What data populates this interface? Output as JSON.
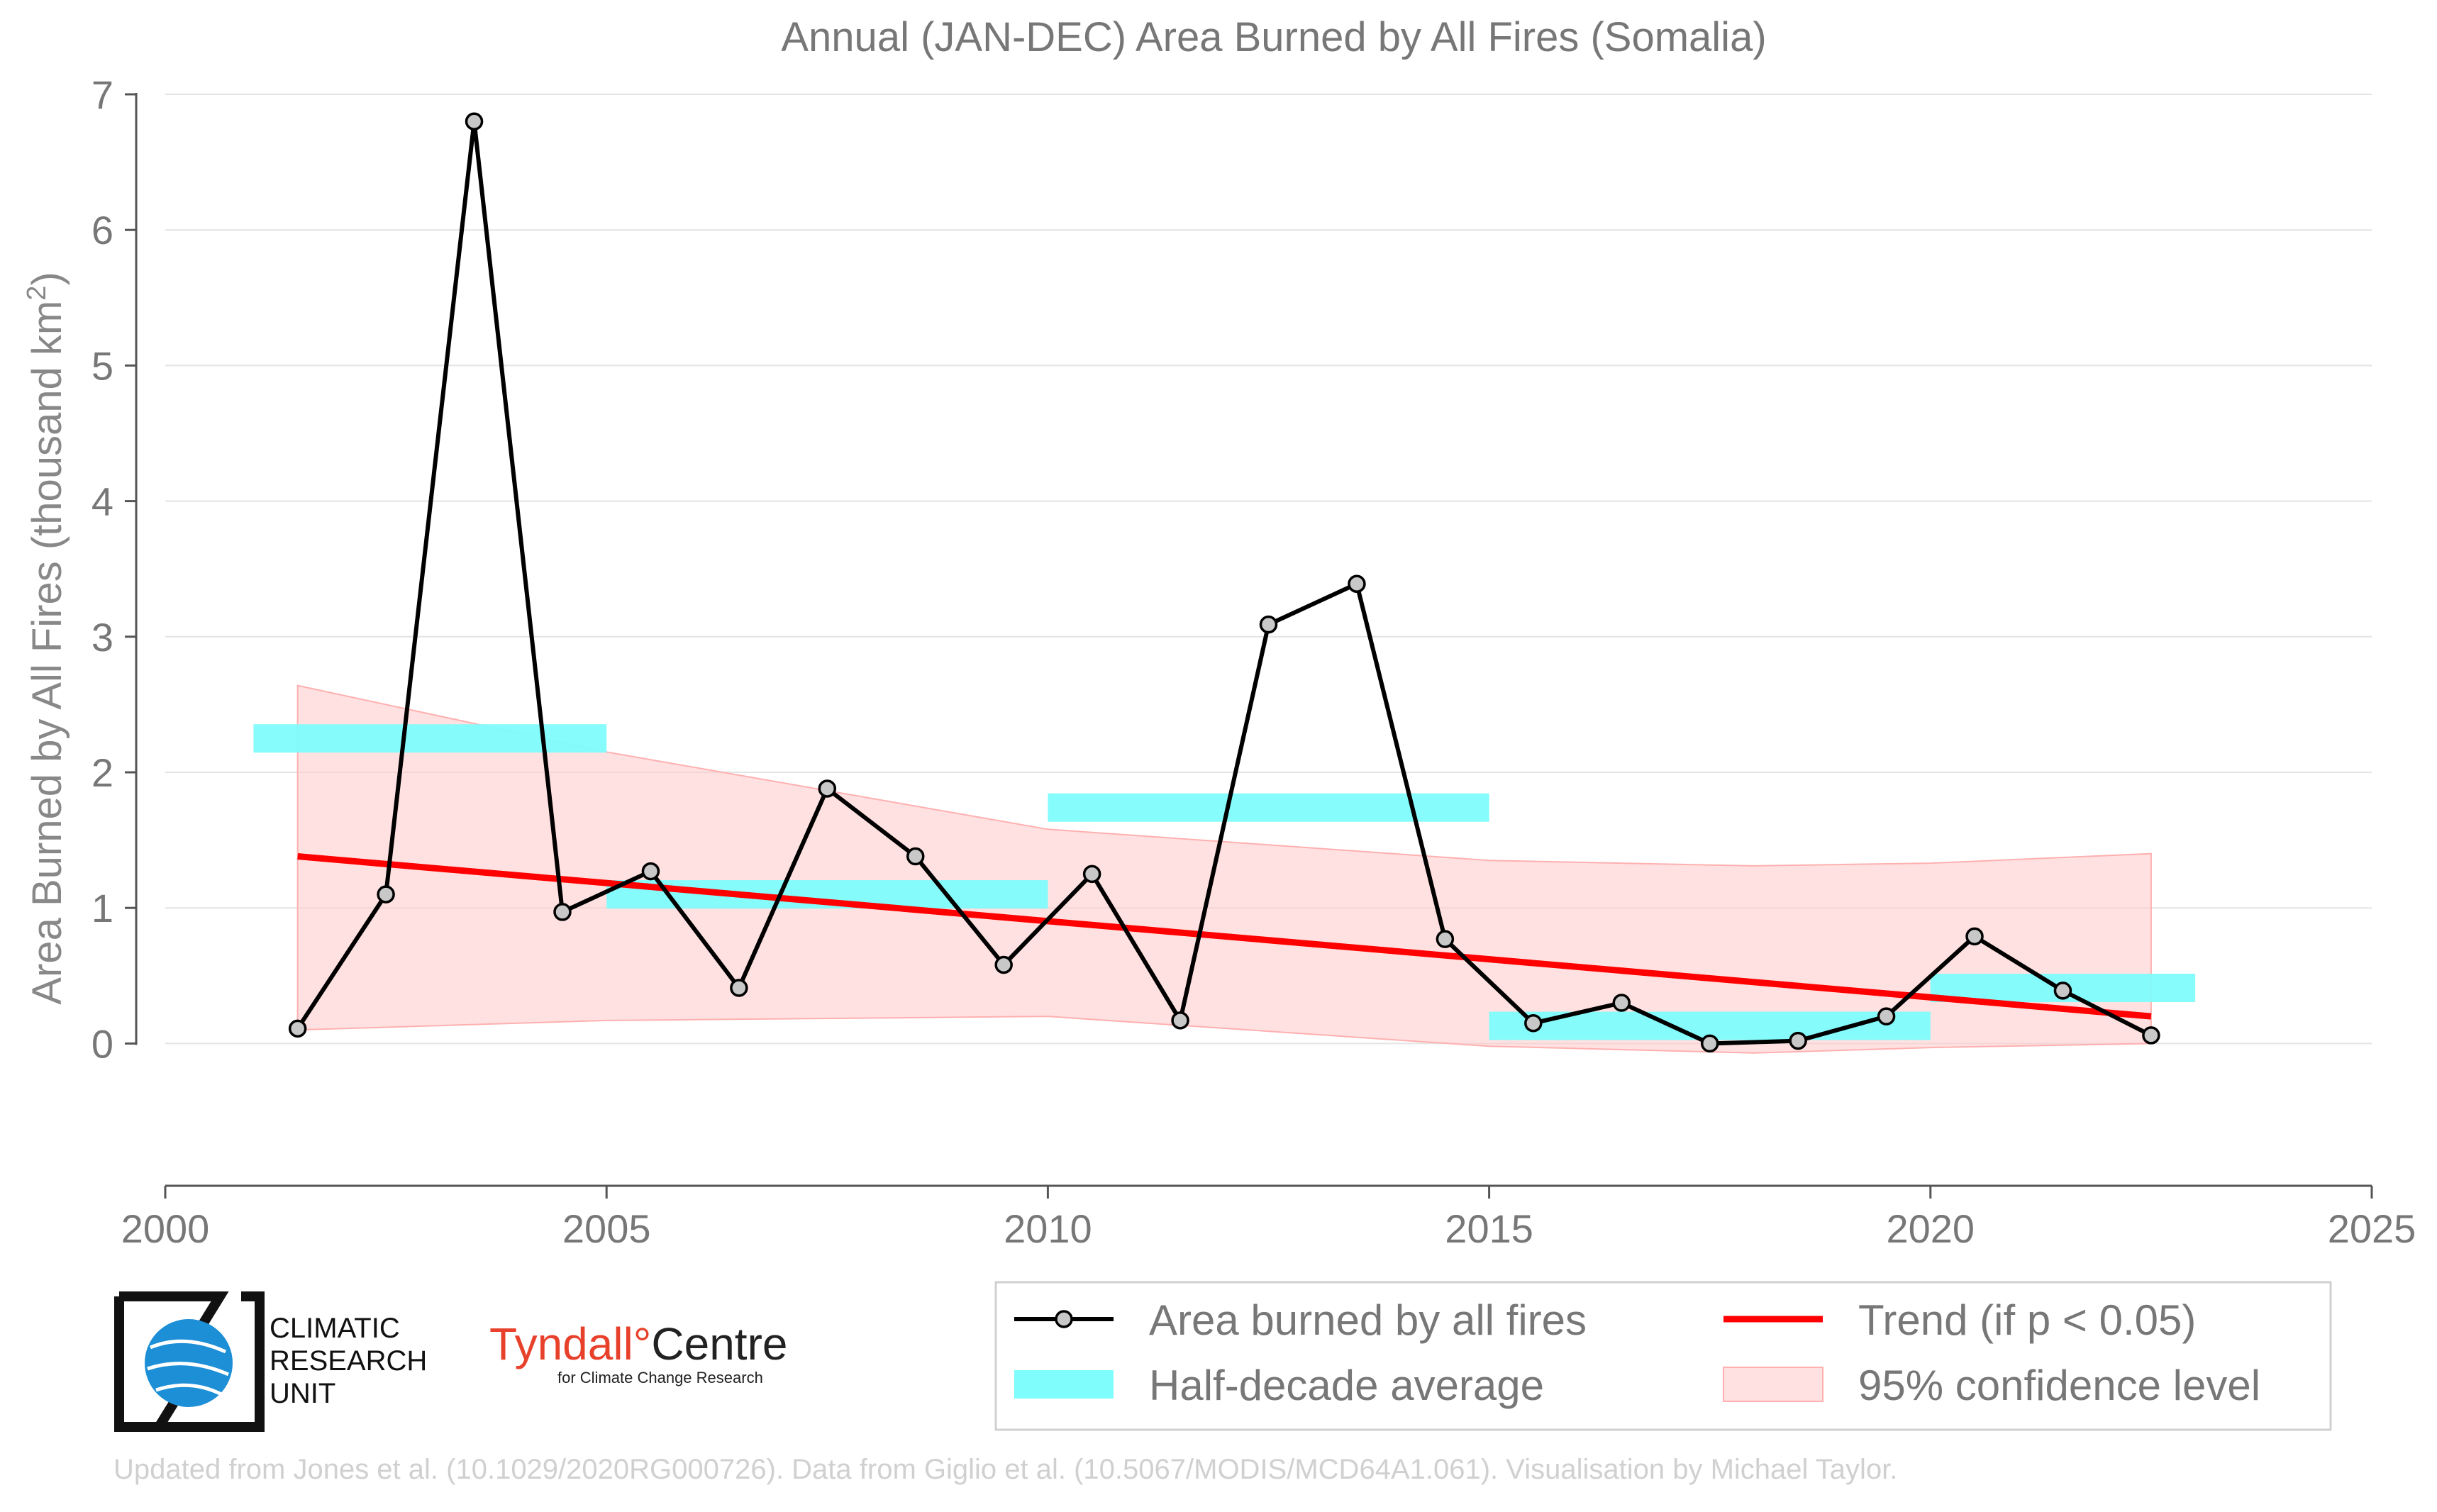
{
  "chart_data": {
    "type": "line",
    "title": "Annual (JAN-DEC) Area Burned by All Fires (Somalia)",
    "ylabel": "Area Burned by All Fires (thousand km",
    "ylabel_superscript": "2",
    "ylabel_close": ")",
    "xlim": [
      2000,
      2025
    ],
    "ylim": [
      -0.5,
      7
    ],
    "x_ticks": [
      2000,
      2005,
      2010,
      2015,
      2020,
      2025
    ],
    "y_ticks": [
      0,
      1,
      2,
      3,
      4,
      5,
      6,
      7
    ],
    "grid": "horizontal",
    "legend_position": "bottom-right",
    "series": [
      {
        "name": "Area burned by all fires",
        "kind": "line-markers",
        "color": "#000000",
        "marker_fill": "#c8c8c8",
        "x": [
          2001.5,
          2002.5,
          2003.5,
          2004.5,
          2005.5,
          2006.5,
          2007.5,
          2008.5,
          2009.5,
          2010.5,
          2011.5,
          2012.5,
          2013.5,
          2014.5,
          2015.5,
          2016.5,
          2017.5,
          2018.5,
          2019.5,
          2020.5,
          2021.5,
          2022.5
        ],
        "y": [
          0.11,
          1.1,
          6.8,
          0.97,
          1.27,
          0.41,
          1.88,
          1.38,
          0.58,
          1.25,
          0.17,
          3.09,
          3.39,
          0.77,
          0.15,
          0.3,
          0.0,
          0.02,
          0.2,
          0.79,
          0.39,
          0.06
        ]
      },
      {
        "name": "Half-decade average",
        "kind": "segments",
        "color": "#7ffcfc",
        "segments": [
          {
            "x0": 2001,
            "x1": 2005,
            "y": 2.25
          },
          {
            "x0": 2005,
            "x1": 2010,
            "y": 1.1
          },
          {
            "x0": 2010,
            "x1": 2015,
            "y": 1.74
          },
          {
            "x0": 2015,
            "x1": 2020,
            "y": 0.13
          },
          {
            "x0": 2020,
            "x1": 2023,
            "y": 0.41
          }
        ]
      },
      {
        "name": "Trend (if p < 0.05)",
        "kind": "line",
        "color": "#ff0000",
        "x": [
          2001.5,
          2022.5
        ],
        "y": [
          1.38,
          0.2
        ]
      },
      {
        "name": "95% confidence level",
        "kind": "band",
        "color": "#ffc8c8",
        "x": [
          2001.5,
          2005,
          2010,
          2015,
          2018,
          2020,
          2022.5
        ],
        "upper": [
          2.64,
          2.15,
          1.58,
          1.35,
          1.31,
          1.33,
          1.4
        ],
        "lower": [
          0.1,
          0.17,
          0.2,
          -0.02,
          -0.07,
          -0.03,
          0.0
        ]
      }
    ],
    "legend": [
      {
        "label": "Area burned by all fires"
      },
      {
        "label": "Trend (if p < 0.05)"
      },
      {
        "label": "Half-decade average"
      },
      {
        "label": "95% confidence level"
      }
    ]
  },
  "logos": {
    "cru_lines": [
      "CLIMATIC",
      "RESEARCH",
      "UNIT"
    ],
    "tyndall_name": "Tyndall",
    "tyndall_degree": "°",
    "tyndall_centre": "Centre",
    "tyndall_sub": "for Climate Change Research"
  },
  "footer": "Updated from Jones et al. (10.1029/2020RG000726). Data from Giglio et al. (10.5067/MODIS/MCD64A1.061). Visualisation by Michael Taylor."
}
